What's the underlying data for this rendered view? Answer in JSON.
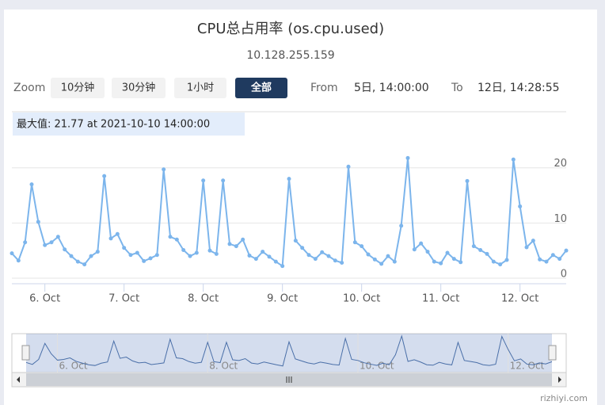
{
  "chart_data": {
    "type": "line",
    "title": "CPU总占用率 (os.cpu.used)",
    "subtitle": "10.128.255.159",
    "zoom_label": "Zoom",
    "zoom_buttons": [
      "10分钟",
      "30分钟",
      "1小时",
      "全部"
    ],
    "from_label": "From",
    "from_value": "5日, 14:00:00",
    "to_label": "To",
    "to_value": "12日, 14:28:55",
    "annotation": "最大值: 21.77 at 2021-10-10 14:00:00",
    "watermark": "rizhiyi.com",
    "color": "#7cb5ec",
    "values": [
      4.5,
      3.2,
      6.5,
      17.0,
      10.2,
      6.0,
      6.5,
      7.5,
      5.2,
      4.0,
      3.0,
      2.5,
      4.0,
      4.8,
      18.5,
      7.2,
      8.0,
      5.5,
      4.2,
      4.6,
      3.1,
      3.6,
      4.2,
      19.7,
      7.5,
      7.0,
      5.1,
      4.0,
      4.6,
      17.7,
      5.0,
      4.4,
      17.7,
      6.2,
      5.8,
      7.0,
      4.1,
      3.5,
      4.8,
      3.9,
      3.0,
      2.2,
      18.0,
      6.8,
      5.5,
      4.2,
      3.5,
      4.7,
      4.0,
      3.2,
      2.8,
      20.2,
      6.5,
      5.8,
      4.3,
      3.4,
      2.6,
      4.0,
      3.0,
      9.5,
      21.77,
      5.2,
      6.3,
      4.8,
      3.0,
      2.7,
      4.6,
      3.5,
      2.9,
      17.6,
      5.8,
      5.1,
      4.4,
      3.0,
      2.5,
      3.3,
      21.5,
      13.0,
      5.6,
      6.8,
      3.4,
      3.0,
      4.2,
      3.5,
      5.0
    ],
    "xlim": [
      0,
      84
    ],
    "xticks": [
      {
        "value": 5,
        "label": "6. Oct"
      },
      {
        "value": 17,
        "label": "7. Oct"
      },
      {
        "value": 29,
        "label": "8. Oct"
      },
      {
        "value": 41,
        "label": "9. Oct"
      },
      {
        "value": 53,
        "label": "10. Oct"
      },
      {
        "value": 65,
        "label": "11. Oct"
      },
      {
        "value": 77,
        "label": "12. Oct"
      }
    ],
    "navigator_xticks": [
      {
        "value": 5,
        "label": "6. Oct"
      },
      {
        "value": 29,
        "label": "8. Oct"
      },
      {
        "value": 53,
        "label": "10. Oct"
      },
      {
        "value": 77,
        "label": "12. Oct"
      }
    ],
    "ylim": [
      0,
      29
    ],
    "yticks": [
      0,
      10,
      20
    ],
    "grid": true
  }
}
